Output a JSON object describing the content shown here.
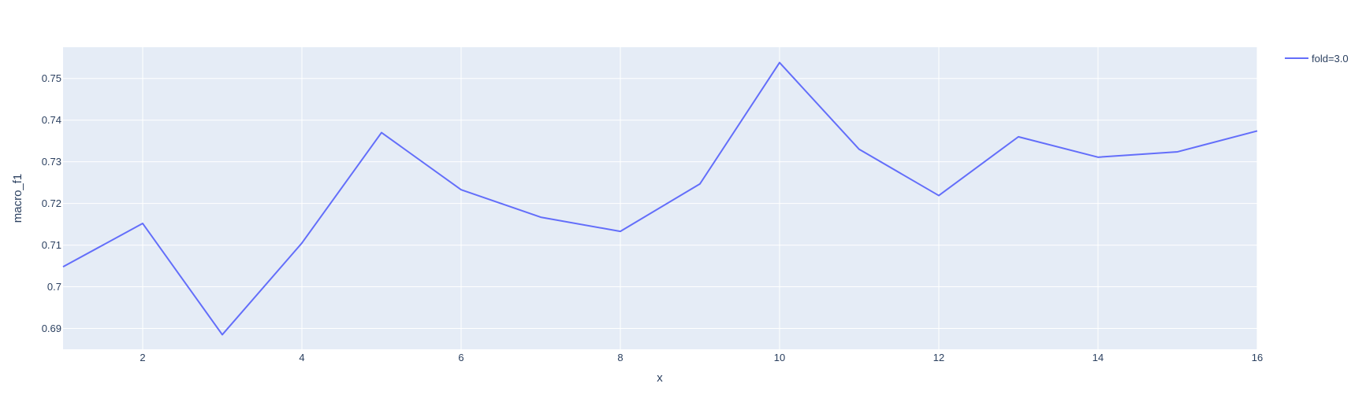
{
  "chart_data": {
    "type": "line",
    "xlabel": "x",
    "ylabel": "macro_f1",
    "xlim": [
      1,
      16
    ],
    "ylim": [
      0.685,
      0.7575
    ],
    "x_ticks": [
      "2",
      "4",
      "6",
      "8",
      "10",
      "12",
      "14",
      "16"
    ],
    "y_ticks": [
      "0.69",
      "0.7",
      "0.71",
      "0.72",
      "0.73",
      "0.74",
      "0.75"
    ],
    "grid": true,
    "legend_position": "top-right",
    "colors": {
      "background": "#e5ecf6",
      "grid": "#ffffff",
      "series": "#636efa"
    },
    "series": [
      {
        "name": "fold=3.0",
        "x": [
          1,
          2,
          3,
          4,
          5,
          6,
          7,
          8,
          9,
          10,
          11,
          12,
          13,
          14,
          15,
          16
        ],
        "values": [
          0.7048,
          0.7152,
          0.6885,
          0.7105,
          0.737,
          0.7233,
          0.7167,
          0.7133,
          0.7247,
          0.7538,
          0.733,
          0.7219,
          0.736,
          0.7311,
          0.7324,
          0.7374
        ]
      }
    ]
  }
}
